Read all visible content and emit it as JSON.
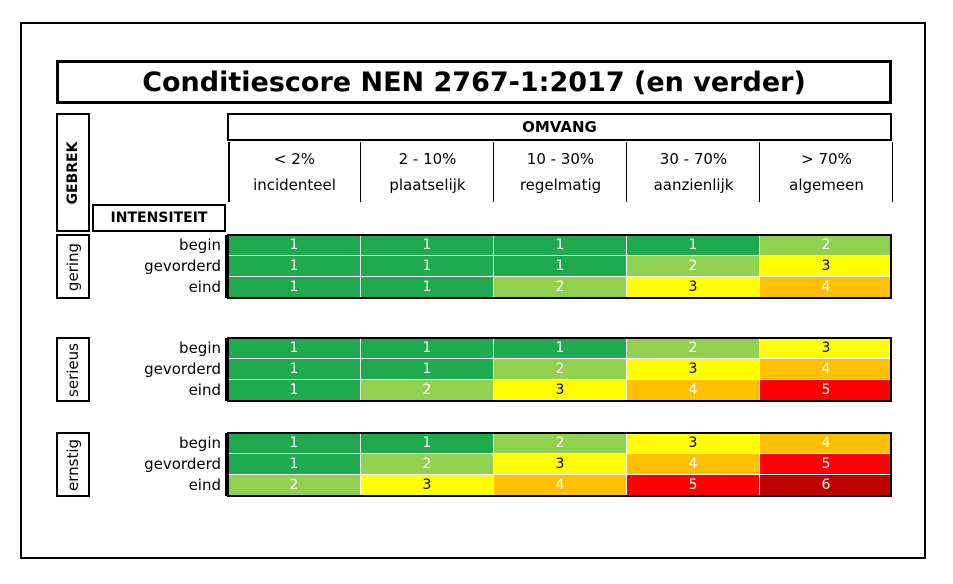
{
  "title": "Conditiescore NEN 2767-1:2017 (en verder)",
  "gebrek_label": "GEBREK",
  "omvang_label": "OMVANG",
  "intensiteit_label": "INTENSITEIT",
  "columns": [
    {
      "range": "< 2%",
      "label": "incidenteel"
    },
    {
      "range": "2 - 10%",
      "label": "plaatselijk"
    },
    {
      "range": "10 - 30%",
      "label": "regelmatig"
    },
    {
      "range": "30 - 70%",
      "label": "aanzienlijk"
    },
    {
      "range": "> 70%",
      "label": "algemeen"
    }
  ],
  "groups": [
    {
      "name": "gering",
      "rows": [
        {
          "label": "begin",
          "scores": [
            "1",
            "1",
            "1",
            "1",
            "2"
          ]
        },
        {
          "label": "gevorderd",
          "scores": [
            "1",
            "1",
            "1",
            "2",
            "3"
          ]
        },
        {
          "label": "eind",
          "scores": [
            "1",
            "1",
            "2",
            "3",
            "4"
          ]
        }
      ]
    },
    {
      "name": "serieus",
      "rows": [
        {
          "label": "begin",
          "scores": [
            "1",
            "1",
            "1",
            "2",
            "3"
          ]
        },
        {
          "label": "gevorderd",
          "scores": [
            "1",
            "1",
            "2",
            "3",
            "4"
          ]
        },
        {
          "label": "eind",
          "scores": [
            "1",
            "2",
            "3",
            "4",
            "5"
          ]
        }
      ]
    },
    {
      "name": "ernstig",
      "rows": [
        {
          "label": "begin",
          "scores": [
            "1",
            "1",
            "2",
            "3",
            "4"
          ]
        },
        {
          "label": "gevorderd",
          "scores": [
            "1",
            "2",
            "3",
            "4",
            "5"
          ]
        },
        {
          "label": "eind",
          "scores": [
            "2",
            "3",
            "4",
            "5",
            "6"
          ]
        }
      ]
    }
  ],
  "score_colors": {
    "1": {
      "bg": "#1faa4f",
      "fg": "#ffffff"
    },
    "2": {
      "bg": "#92d050",
      "fg": "#ffffff"
    },
    "3": {
      "bg": "#ffff00",
      "fg": "#000000"
    },
    "4": {
      "bg": "#ffc000",
      "fg": "#ffffff"
    },
    "5": {
      "bg": "#ff0000",
      "fg": "#ffffff"
    },
    "6": {
      "bg": "#c00000",
      "fg": "#ffffff"
    }
  }
}
